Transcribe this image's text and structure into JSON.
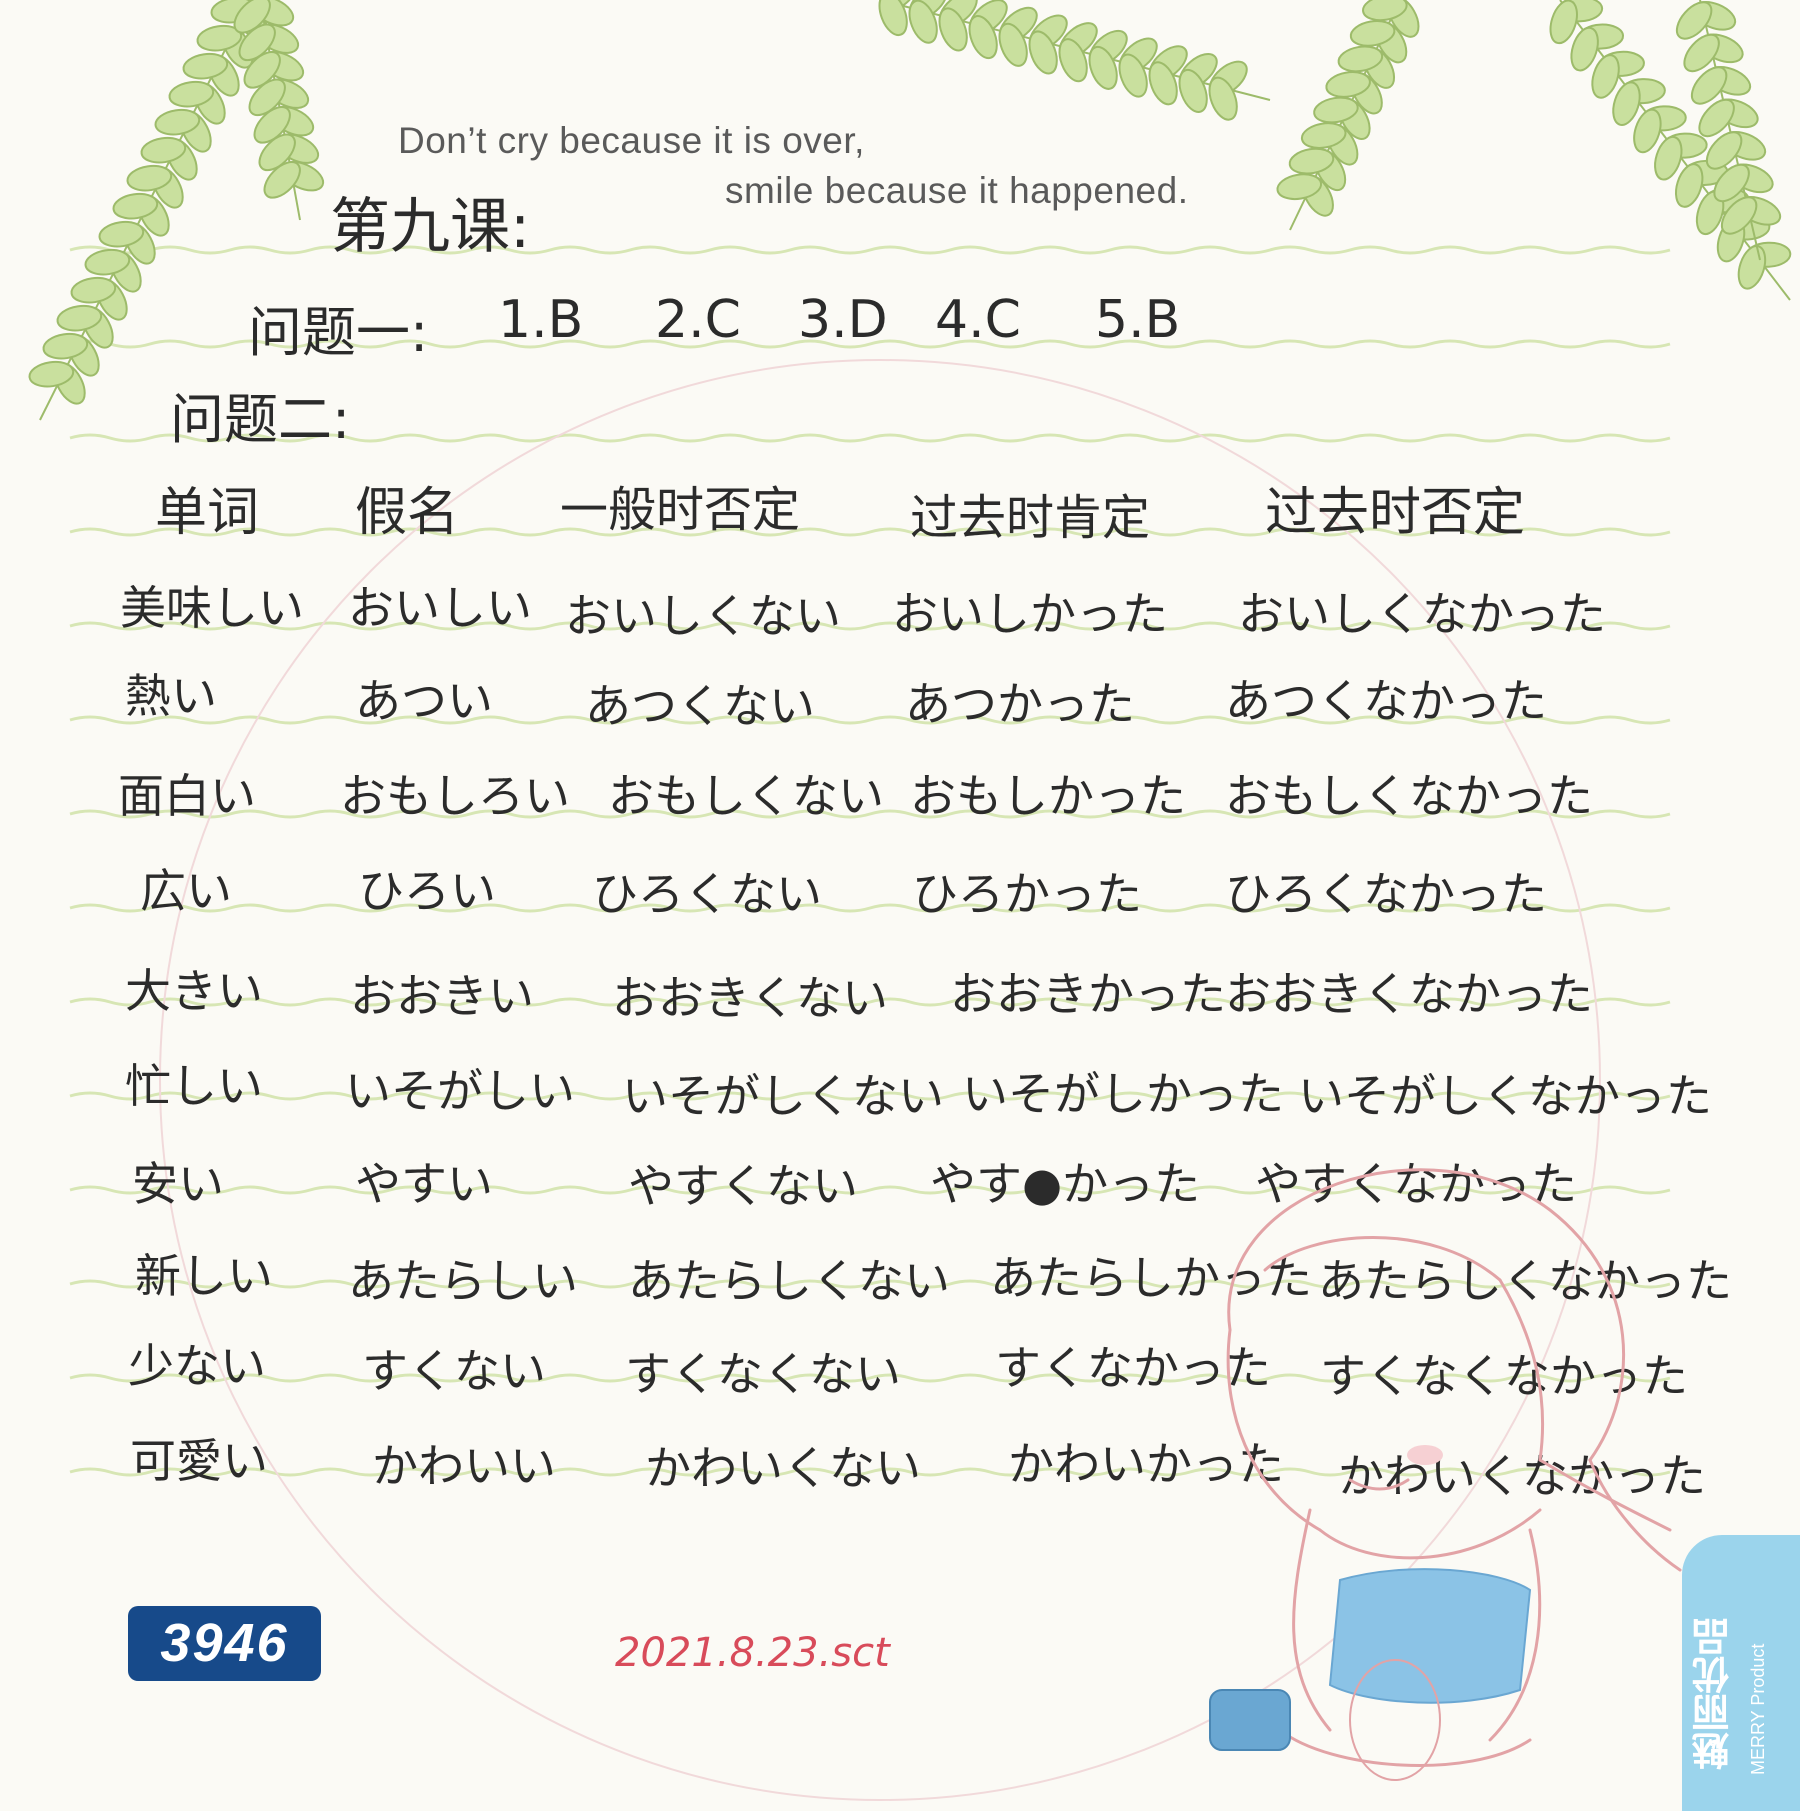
{
  "quote": {
    "line1": "Don’t cry because it is over,",
    "line2": "smile because it happened."
  },
  "notes": {
    "lesson_title": "第九课:",
    "problem1_label": "问题一:",
    "problem1_answers": [
      "1.B",
      "2.C",
      "3.D",
      "4.C",
      "5.B"
    ],
    "problem2_label": "问题二:"
  },
  "table": {
    "headers": [
      "单词",
      "假名",
      "一般时否定",
      "过去时肯定",
      "过去时否定"
    ],
    "rows": [
      [
        "美味しい",
        "おいしい",
        "おいしくない",
        "おいしかった",
        "おいしくなかった"
      ],
      [
        "熱い",
        "あつい",
        "あつくない",
        "あつかった",
        "あつくなかった"
      ],
      [
        "面白い",
        "おもしろい",
        "おもしくない",
        "おもしかった",
        "おもしくなかった"
      ],
      [
        "広い",
        "ひろい",
        "ひろくない",
        "ひろかった",
        "ひろくなかった"
      ],
      [
        "大きい",
        "おおきい",
        "おおきくない",
        "おおきかった",
        "おおきくなかった"
      ],
      [
        "忙しい",
        "いそがしい",
        "いそがしくない",
        "いそがしかった",
        "いそがしくなかった"
      ],
      [
        "安い",
        "やすい",
        "やすくない",
        "やす●かった",
        "やすくなかった"
      ],
      [
        "新しい",
        "あたらしい",
        "あたらしくない",
        "あたらしかった",
        "あたらしくなかった"
      ],
      [
        "少ない",
        "すくない",
        "すくなくない",
        "すくなかった",
        "すくなくなかった"
      ],
      [
        "可愛い",
        "かわいい",
        "かわいくない",
        "かわいかった",
        "かわいくなかった"
      ]
    ]
  },
  "date": "2021.8.23.sct",
  "stamp_number": "3946",
  "brand": {
    "name_cn": "魅丽优品",
    "name_en": "MERRY Product"
  },
  "colors": {
    "ink": "#2b2b2b",
    "date_ink": "#d84b5a",
    "rule_line": "#d7e6b4",
    "leaf": "#b8d68a",
    "stamp_bg": "#174a8a",
    "brand_bg": "#9bd4ec"
  }
}
